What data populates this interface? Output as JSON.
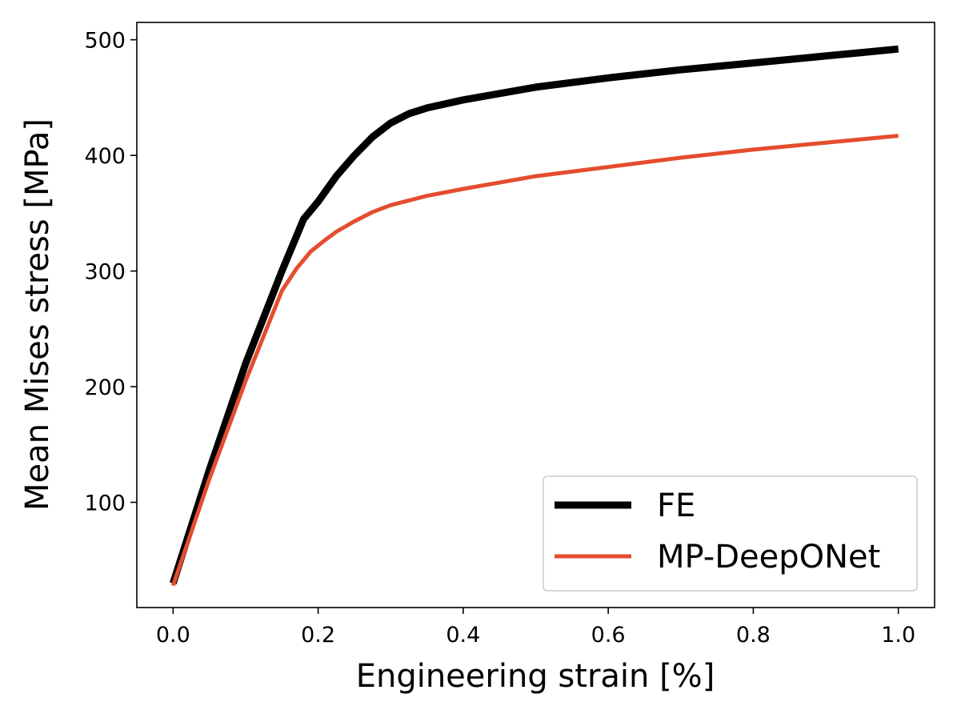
{
  "chart_data": {
    "type": "line",
    "title": "",
    "xlabel": "Engineering strain [%]",
    "ylabel": "Mean Mises stress [MPa]",
    "xlim": [
      -0.05,
      1.05
    ],
    "ylim": [
      9,
      515
    ],
    "xticks": [
      0.0,
      0.2,
      0.4,
      0.6,
      0.8,
      1.0
    ],
    "xtick_labels": [
      "0.0",
      "0.2",
      "0.4",
      "0.6",
      "0.8",
      "1.0"
    ],
    "yticks": [
      100,
      200,
      300,
      400,
      500
    ],
    "ytick_labels": [
      "100",
      "200",
      "300",
      "400",
      "500"
    ],
    "grid": false,
    "legend_position": "lower-right",
    "series": [
      {
        "name": "FE",
        "color": "#000000",
        "style": "thick",
        "x": [
          0.0,
          0.05,
          0.1,
          0.15,
          0.18,
          0.2,
          0.225,
          0.25,
          0.275,
          0.3,
          0.325,
          0.35,
          0.4,
          0.5,
          0.6,
          0.7,
          0.8,
          0.9,
          0.95,
          1.0
        ],
        "y": [
          30,
          128,
          220,
          300,
          345,
          360,
          382,
          400,
          416,
          428,
          436,
          441,
          448,
          459,
          467,
          474,
          480,
          486,
          489,
          492
        ]
      },
      {
        "name": "MP-DeepONet",
        "color": "#e44d2e",
        "style": "normal",
        "x": [
          0.0,
          0.05,
          0.1,
          0.15,
          0.17,
          0.19,
          0.21,
          0.225,
          0.25,
          0.275,
          0.3,
          0.325,
          0.35,
          0.4,
          0.5,
          0.6,
          0.7,
          0.8,
          0.9,
          1.0
        ],
        "y": [
          28,
          120,
          205,
          283,
          302,
          317,
          327,
          334,
          343,
          351,
          357,
          361,
          365,
          371,
          382,
          390,
          398,
          405,
          411,
          417
        ]
      }
    ]
  }
}
